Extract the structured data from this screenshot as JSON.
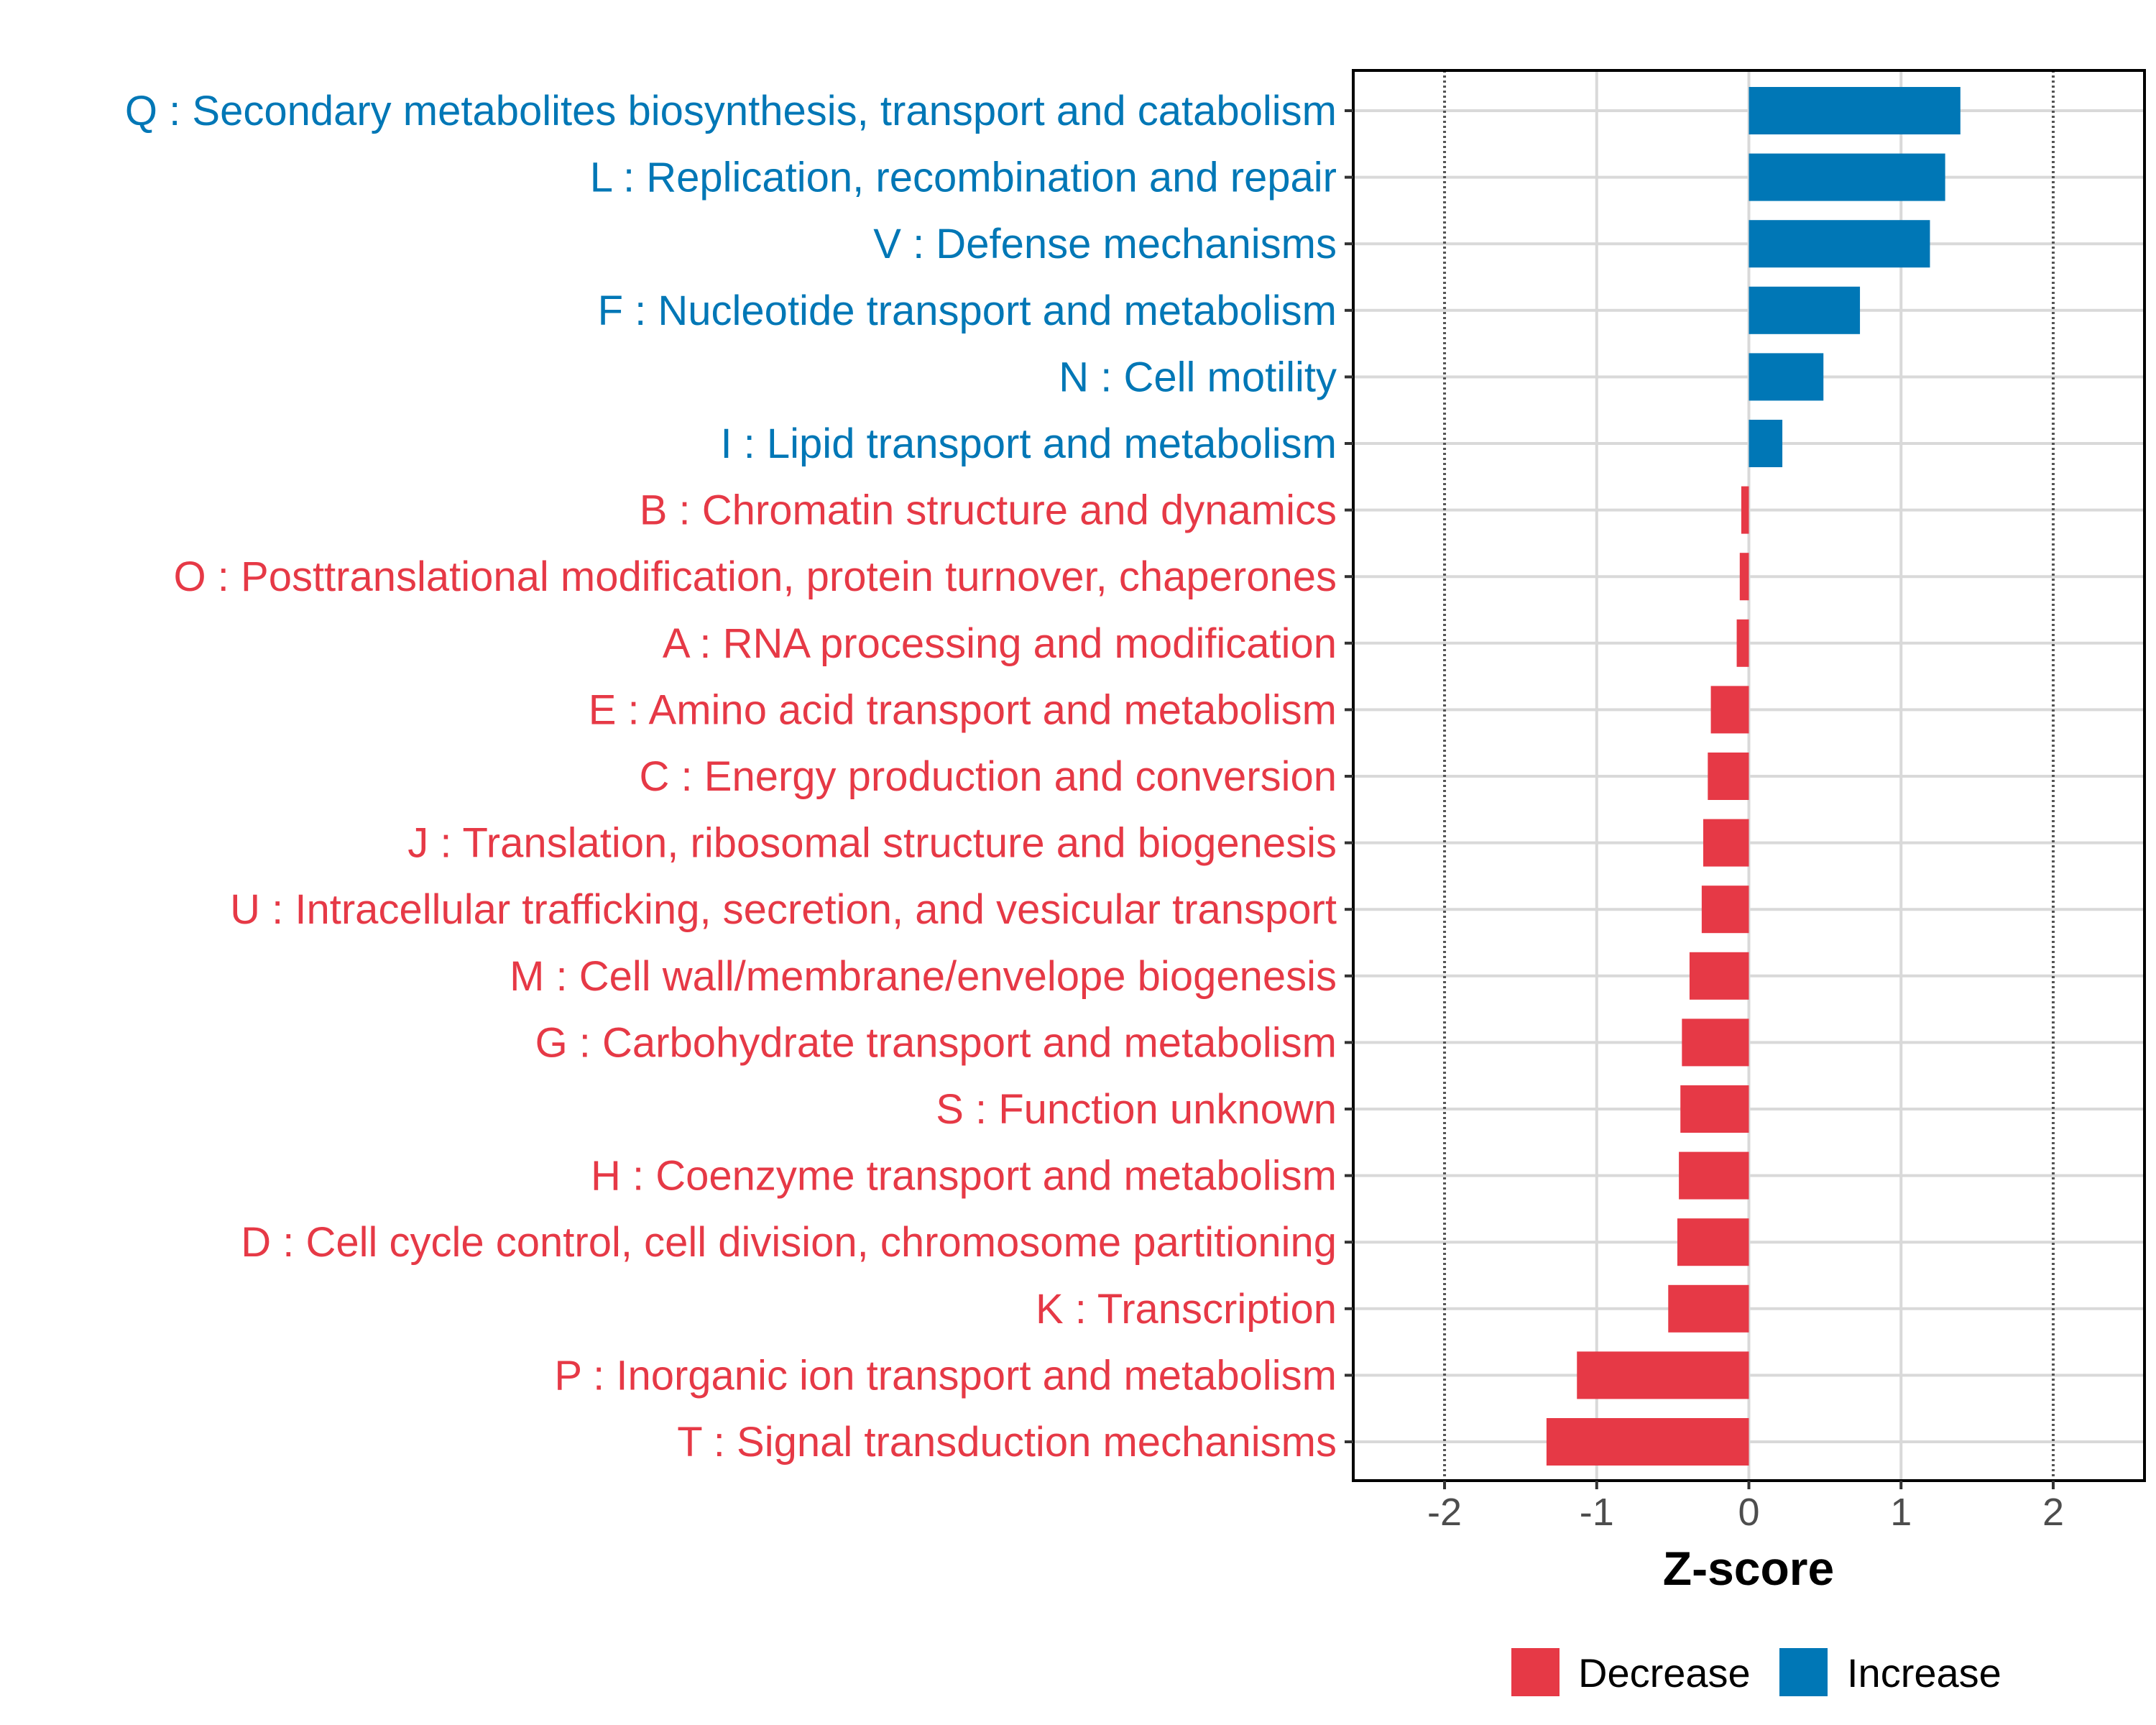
{
  "chart_data": {
    "type": "bar",
    "orientation": "horizontal",
    "title": "",
    "xlabel": "Z-score",
    "ylabel": "",
    "xlim": [
      -2.6,
      2.6
    ],
    "x_ticks": [
      -2,
      -1,
      0,
      1,
      2
    ],
    "x_tick_labels": [
      "-2",
      "-1",
      "0",
      "1",
      "2"
    ],
    "reference_lines": [
      -2,
      2
    ],
    "grid": true,
    "legend_position": "bottom",
    "colors": {
      "Decrease": "#E63946",
      "Increase": "#0077B6",
      "grid": "#d9d9d9",
      "refline": "#555555",
      "axis": "#000000"
    },
    "legend": [
      {
        "name": "Decrease",
        "color": "#E63946"
      },
      {
        "name": "Increase",
        "color": "#0077B6"
      }
    ],
    "categories": [
      "Q : Secondary metabolites biosynthesis, transport and catabolism",
      "L : Replication, recombination and repair",
      "V : Defense mechanisms",
      "F : Nucleotide transport and metabolism",
      "N : Cell motility",
      "I : Lipid transport and metabolism",
      "B : Chromatin structure and dynamics",
      "O : Posttranslational modification, protein turnover, chaperones",
      "A : RNA processing and modification",
      "E : Amino acid transport and metabolism",
      "C : Energy production and conversion",
      "J : Translation, ribosomal structure and biogenesis",
      "U : Intracellular trafficking, secretion, and vesicular transport",
      "M : Cell wall/membrane/envelope biogenesis",
      "G : Carbohydrate transport and metabolism",
      "S : Function unknown",
      "H : Coenzyme transport and metabolism",
      "D : Cell cycle control, cell division, chromosome partitioning",
      "K : Transcription",
      "P : Inorganic ion transport and metabolism",
      "T : Signal transduction mechanisms"
    ],
    "values": [
      1.39,
      1.29,
      1.19,
      0.73,
      0.49,
      0.22,
      -0.05,
      -0.06,
      -0.08,
      -0.25,
      -0.27,
      -0.3,
      -0.31,
      -0.39,
      -0.44,
      -0.45,
      -0.46,
      -0.47,
      -0.53,
      -1.13,
      -1.33
    ],
    "groups": [
      "Increase",
      "Increase",
      "Increase",
      "Increase",
      "Increase",
      "Increase",
      "Decrease",
      "Decrease",
      "Decrease",
      "Decrease",
      "Decrease",
      "Decrease",
      "Decrease",
      "Decrease",
      "Decrease",
      "Decrease",
      "Decrease",
      "Decrease",
      "Decrease",
      "Decrease",
      "Decrease"
    ]
  }
}
